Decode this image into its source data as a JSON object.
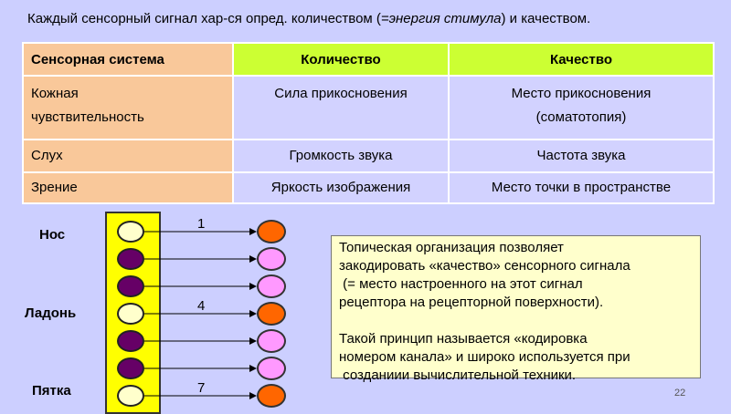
{
  "title": {
    "before": "Каждый сенсорный сигнал хар-ся опред. количеством (",
    "italic": "=энергия стимула",
    "after": ") и качеством."
  },
  "table": {
    "headers": [
      "Сенсорная система",
      "Количество",
      "Качество"
    ],
    "rows": [
      {
        "system": [
          "Кожная",
          "чувствительность"
        ],
        "quantity": "Сила прикосновения",
        "quality": [
          "Место прикосновения",
          "(соматотопия)"
        ]
      },
      {
        "system": [
          "Слух"
        ],
        "quantity": "Громкость звука",
        "quality": [
          "Частота звука"
        ]
      },
      {
        "system": [
          "Зрение"
        ],
        "quantity": "Яркость изображения",
        "quality": [
          "Место точки в пространстве"
        ]
      }
    ]
  },
  "diagram": {
    "labels": {
      "nose": "Нос",
      "palm": "Ладонь",
      "heel": "Пятка"
    },
    "numbers": {
      "n1": "1",
      "n4": "4",
      "n7": "7"
    },
    "receptor_colors": [
      "#ffffcc",
      "#660066",
      "#660066",
      "#ffffcc",
      "#660066",
      "#660066",
      "#ffffcc"
    ],
    "target_colors": [
      "#ff6600",
      "#ff99ff",
      "#ff99ff",
      "#ff6600",
      "#ff99ff",
      "#ff99ff",
      "#ff6600"
    ]
  },
  "textbox": {
    "para1": "Топическая организация позволяет\nзакодировать «качество» сенсорного сигнала\n (= место настроенного на этот сигнал\nрецептора на рецепторной поверхности).",
    "para2": "Такой принцип называется «кодировка\nномером канала» и широко используется при\n созданиии вычислительной техники."
  },
  "page_number": "22"
}
